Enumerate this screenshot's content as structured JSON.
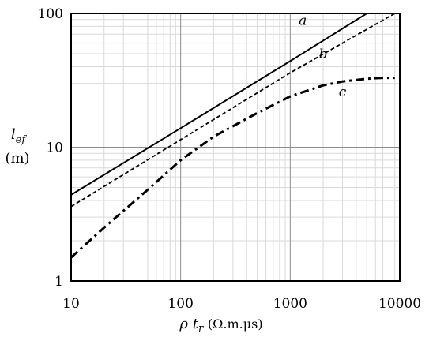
{
  "chart_data": {
    "type": "line",
    "x_scale": "log",
    "y_scale": "log",
    "xlim": [
      10,
      10000
    ],
    "ylim": [
      1,
      100
    ],
    "grid": true,
    "xlabel": {
      "rho": "ρ",
      "t": "t",
      "sub": "r",
      "unit": "(Ω.m.μs)"
    },
    "ylabel": {
      "l": "l",
      "sub": "ef",
      "unit": "(m)"
    },
    "x_ticks": [
      {
        "value": 10,
        "label": "10"
      },
      {
        "value": 100,
        "label": "100"
      },
      {
        "value": 1000,
        "label": "1000"
      },
      {
        "value": 10000,
        "label": "10000"
      }
    ],
    "y_ticks": [
      {
        "value": 1,
        "label": "1"
      },
      {
        "value": 10,
        "label": "10"
      },
      {
        "value": 100,
        "label": "100"
      }
    ],
    "series": [
      {
        "name": "a",
        "style": "solid",
        "x": [
          10,
          100,
          1000,
          5000
        ],
        "y": [
          4.4,
          13.9,
          44,
          100
        ],
        "label_at": [
          1300,
          82
        ]
      },
      {
        "name": "b",
        "style": "dashed",
        "x": [
          10,
          100,
          1000,
          9000
        ],
        "y": [
          3.6,
          11.4,
          36,
          100
        ],
        "label_at": [
          2000,
          46
        ]
      },
      {
        "name": "c",
        "style": "dashdot",
        "x": [
          10,
          20,
          50,
          100,
          200,
          500,
          1000,
          2000,
          3000,
          5000,
          7000,
          9000
        ],
        "y": [
          1.5,
          2.5,
          4.8,
          8,
          12,
          18,
          24,
          29,
          31,
          32.5,
          33,
          33
        ],
        "label_at": [
          3000,
          24
        ]
      }
    ]
  }
}
